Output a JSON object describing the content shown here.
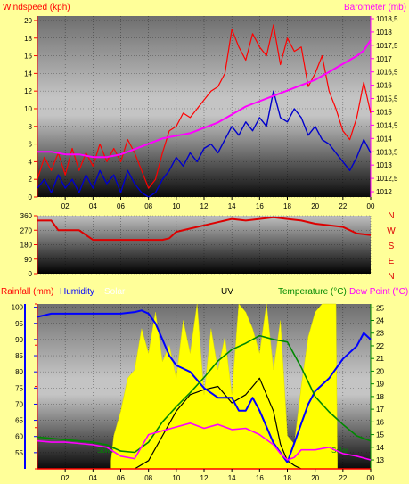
{
  "colors": {
    "background": "#ffff99",
    "wind": "#ff0000",
    "gust": "#ff0000",
    "avgwind": "#0000cc",
    "baro": "#ff00ff",
    "direction": "#dd0000",
    "rain": "#ff0000",
    "humidity": "#0000ff",
    "solar": "#ffff00",
    "uv": "#000000",
    "temperature": "#008800",
    "dewpoint": "#ff00ff",
    "tick_left": "#ff0000",
    "tick_right": "#ff00ff",
    "bottom_left_axis": "#0000ff",
    "bottom_right_axis": "#008800"
  },
  "chart_data": [
    {
      "type": "line",
      "title": "",
      "y_label_left": "Windspeed (kph)",
      "y_label_right": "Barometer (mb)",
      "x_ticks": [
        "02",
        "04",
        "06",
        "08",
        "10",
        "12",
        "14",
        "16",
        "18",
        "20",
        "22",
        "00"
      ],
      "y_left": {
        "min": 0,
        "max": 20.5,
        "ticks": [
          "0",
          "2",
          "4",
          "6",
          "8",
          "10",
          "12",
          "14",
          "16",
          "18",
          "20"
        ]
      },
      "y_right": {
        "min": 1011.8,
        "max": 1018.6,
        "ticks": [
          "1012",
          "1012,5",
          "1013",
          "1013,5",
          "1014",
          "1014,5",
          "1015",
          "1015,5",
          "1016",
          "1016,5",
          "1017",
          "1017,5",
          "1018",
          "1018,5"
        ]
      },
      "series": [
        {
          "key": "gust",
          "axis": "left",
          "x": [
            0,
            0.5,
            1,
            1.5,
            2,
            2.5,
            3,
            3.5,
            4,
            4.5,
            5,
            5.5,
            6,
            6.5,
            7,
            7.5,
            8,
            8.5,
            9,
            9.5,
            10,
            10.5,
            11,
            11.5,
            12,
            12.5,
            13,
            13.5,
            14,
            14.5,
            15,
            15.5,
            16,
            16.5,
            17,
            17.5,
            18,
            18.5,
            19,
            19.5,
            20,
            20.5,
            21,
            21.5,
            22,
            22.5,
            23,
            23.5,
            24
          ],
          "values": [
            2,
            4.5,
            3,
            5,
            2.5,
            5.5,
            3,
            5,
            3.5,
            6,
            4,
            5.5,
            4,
            6.5,
            5,
            3,
            1,
            2,
            5,
            7.5,
            8,
            9.5,
            9,
            10,
            11,
            12,
            12.5,
            14,
            19,
            17,
            15.5,
            18.5,
            17,
            16,
            19.5,
            15,
            18,
            16.5,
            17,
            12.5,
            14,
            16,
            12,
            10,
            7.5,
            6.5,
            9,
            13,
            9.5
          ]
        },
        {
          "key": "avgwind",
          "axis": "left",
          "x": [
            0,
            0.5,
            1,
            1.5,
            2,
            2.5,
            3,
            3.5,
            4,
            4.5,
            5,
            5.5,
            6,
            6.5,
            7,
            7.5,
            8,
            8.5,
            9,
            9.5,
            10,
            10.5,
            11,
            11.5,
            12,
            12.5,
            13,
            13.5,
            14,
            14.5,
            15,
            15.5,
            16,
            16.5,
            17,
            17.5,
            18,
            18.5,
            19,
            19.5,
            20,
            20.5,
            21,
            21.5,
            22,
            22.5,
            23,
            23.5,
            24
          ],
          "values": [
            1,
            2,
            0.5,
            2.5,
            1,
            2,
            0.5,
            2.5,
            1,
            3,
            1.5,
            2.5,
            0.5,
            3,
            1.5,
            0.5,
            0,
            0.5,
            2,
            3,
            4.5,
            3.5,
            5,
            4,
            5.5,
            6,
            5,
            6.5,
            8,
            7,
            8.5,
            7.5,
            9,
            8,
            12,
            9,
            8.5,
            10,
            9,
            7,
            8,
            6.5,
            6,
            5,
            4,
            3,
            4.5,
            6.5,
            5
          ]
        },
        {
          "key": "baro",
          "axis": "right",
          "x": [
            0,
            1,
            2,
            3,
            4,
            4.5,
            5,
            6,
            7,
            8,
            9,
            10,
            11,
            12,
            13,
            14,
            15,
            16,
            17,
            18,
            19,
            20,
            21,
            22,
            23,
            23.5,
            24
          ],
          "values": [
            1013.5,
            1013.5,
            1013.4,
            1013.4,
            1013.3,
            1013.3,
            1013.3,
            1013.4,
            1013.6,
            1013.8,
            1014.0,
            1014.1,
            1014.2,
            1014.4,
            1014.6,
            1014.9,
            1015.2,
            1015.4,
            1015.6,
            1015.8,
            1016.0,
            1016.2,
            1016.5,
            1016.8,
            1017.1,
            1017.3,
            1017.7
          ]
        }
      ]
    },
    {
      "type": "line",
      "title": "",
      "y_ticks": [
        "360",
        "270",
        "180",
        "90",
        "0"
      ],
      "y": {
        "min": 0,
        "max": 360
      },
      "x_ticks": [
        "02",
        "04",
        "06",
        "08",
        "10",
        "12",
        "14",
        "16",
        "18",
        "20",
        "22",
        "00"
      ],
      "compass_labels": [
        "N",
        "W",
        "S",
        "E",
        "N"
      ],
      "series": [
        {
          "key": "direction",
          "x": [
            0,
            1,
            1.5,
            2,
            3,
            4,
            5,
            6,
            7,
            8,
            9,
            9.5,
            10,
            11,
            12,
            13,
            14,
            15,
            16,
            17,
            18,
            19,
            20,
            21,
            22,
            23,
            24
          ],
          "values": [
            330,
            330,
            270,
            270,
            270,
            210,
            210,
            210,
            210,
            210,
            210,
            220,
            260,
            280,
            300,
            320,
            340,
            330,
            340,
            350,
            340,
            330,
            310,
            300,
            290,
            250,
            240
          ]
        }
      ]
    },
    {
      "type": "line",
      "title": "",
      "labels": {
        "rainfall": "Rainfall (mm)",
        "humidity": "Humidity",
        "solar": "Solar",
        "uv": "UV",
        "temperature": "Temperature (°C)",
        "dewpoint": "Dew Point (°C)"
      },
      "inline_labels": [
        "Solar",
        "Solar"
      ],
      "x_ticks": [
        "02",
        "04",
        "06",
        "08",
        "10",
        "12",
        "14",
        "16",
        "18",
        "20",
        "22",
        "00"
      ],
      "y_left": {
        "min": 50,
        "max": 101,
        "ticks": [
          "55",
          "60",
          "65",
          "70",
          "75",
          "80",
          "85",
          "90",
          "95",
          "100"
        ]
      },
      "y_right": {
        "min": 12.3,
        "max": 25.3,
        "ticks": [
          "13",
          "14",
          "15",
          "16",
          "17",
          "18",
          "19",
          "20",
          "21",
          "22",
          "23",
          "24",
          "25"
        ]
      },
      "series": [
        {
          "key": "solar",
          "axis": "fraction",
          "x": [
            5.3,
            5.5,
            6,
            6.5,
            7,
            7.5,
            8,
            8.5,
            9,
            9.5,
            10,
            10.5,
            11,
            11.5,
            12,
            12.5,
            13,
            13.5,
            14,
            14.5,
            15,
            15.5,
            16,
            16.5,
            17,
            17.5,
            18,
            18.5,
            19,
            19.5,
            20,
            20.5,
            21,
            21.5,
            21.6
          ],
          "values": [
            0.05,
            0.2,
            0.35,
            0.55,
            0.6,
            0.85,
            0.7,
            0.95,
            0.65,
            0.75,
            0.55,
            0.9,
            0.7,
            1.0,
            0.45,
            0.85,
            0.6,
            0.8,
            0.45,
            1.0,
            0.95,
            0.85,
            0.7,
            1.0,
            0.6,
            0.9,
            0.2,
            0.15,
            0.5,
            0.8,
            0.95,
            1.0,
            1.0,
            1.0,
            0.05
          ]
        },
        {
          "key": "uv",
          "axis": "fraction",
          "x": [
            7,
            8,
            9,
            10,
            11,
            12,
            13,
            14,
            15,
            16,
            16.5,
            17,
            17.5,
            18,
            18.5,
            19
          ],
          "values": [
            0,
            0.05,
            0.2,
            0.35,
            0.45,
            0.48,
            0.5,
            0.4,
            0.45,
            0.55,
            0.45,
            0.35,
            0.15,
            0.05,
            0.02,
            0
          ]
        },
        {
          "key": "humidity",
          "axis": "left",
          "x": [
            0,
            0.5,
            1,
            2,
            3,
            4,
            5,
            6,
            7,
            7.5,
            8,
            8.5,
            9,
            9.5,
            10,
            11,
            12,
            13,
            14,
            14.5,
            15,
            15.5,
            16,
            17,
            17.5,
            18,
            18.5,
            19,
            19.5,
            20,
            21,
            22,
            23,
            23.5,
            24
          ],
          "values": [
            97,
            97.5,
            98,
            98,
            98,
            98,
            98,
            98,
            98.5,
            99,
            98,
            95,
            90,
            85,
            82,
            80,
            75,
            72,
            72,
            68,
            68,
            72,
            68,
            58,
            55,
            52,
            58,
            64,
            70,
            74,
            78,
            84,
            88,
            92,
            90
          ]
        },
        {
          "key": "temperature",
          "axis": "right",
          "x": [
            0,
            1,
            2,
            3,
            4,
            5,
            6,
            7,
            8,
            9,
            10,
            11,
            12,
            13,
            14,
            15,
            16,
            17,
            18,
            19,
            20,
            21,
            22,
            23,
            24
          ],
          "values": [
            14.8,
            14.7,
            14.6,
            14.5,
            14.4,
            14.2,
            13.7,
            13.6,
            14.4,
            16.0,
            17.2,
            18.3,
            19.5,
            20.8,
            21.7,
            22.2,
            22.8,
            22.5,
            22.3,
            20.3,
            18.0,
            16.8,
            15.8,
            14.9,
            14.5
          ]
        },
        {
          "key": "dewpoint",
          "axis": "right",
          "x": [
            0,
            1,
            2,
            3,
            4,
            5,
            6,
            7,
            8,
            9,
            10,
            11,
            12,
            13,
            14,
            15,
            16,
            17,
            17.5,
            18,
            18.5,
            19,
            20,
            21,
            22,
            23,
            24
          ],
          "values": [
            14.5,
            14.4,
            14.4,
            14.3,
            14.2,
            14.0,
            13.3,
            13.1,
            15.0,
            15.3,
            15.6,
            15.9,
            15.5,
            15.8,
            15.4,
            15.5,
            15.0,
            14.2,
            13.5,
            13.0,
            13.2,
            13.8,
            13.8,
            14.0,
            13.5,
            13.3,
            13.0
          ]
        },
        {
          "key": "rain",
          "axis": "left",
          "x": [
            0,
            24
          ],
          "values": [
            50,
            50
          ]
        }
      ]
    }
  ]
}
